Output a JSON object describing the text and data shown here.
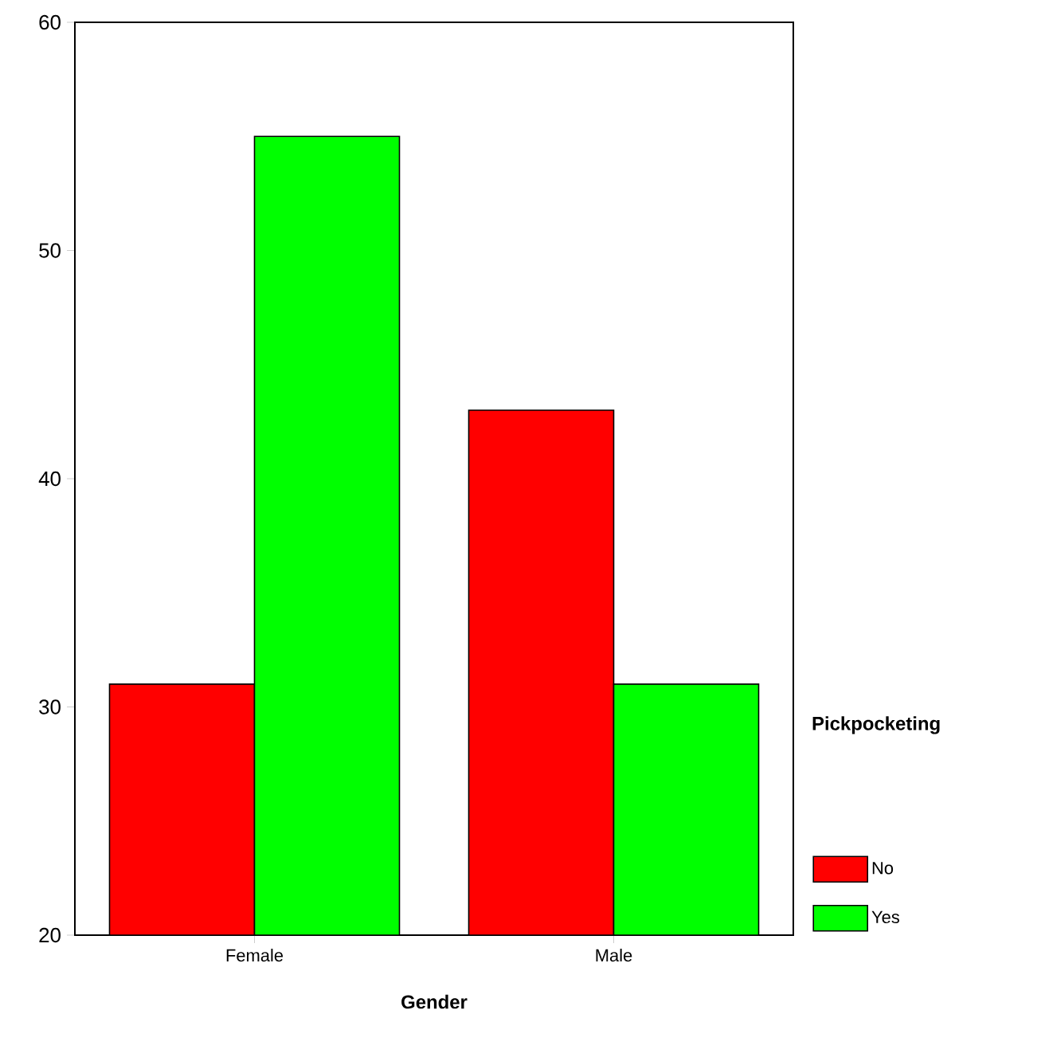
{
  "chart_data": {
    "type": "bar",
    "xlabel": "Gender",
    "legend_title": "Pickpocketing",
    "categories": [
      "Female",
      "Male"
    ],
    "series": [
      {
        "name": "No",
        "color": "#ff0000",
        "values": [
          31,
          43
        ]
      },
      {
        "name": "Yes",
        "color": "#00ff00",
        "values": [
          55,
          31
        ]
      }
    ],
    "ylim": [
      20,
      60
    ],
    "yticks": [
      20,
      30,
      40,
      50,
      60
    ],
    "grid": false,
    "legend": "right"
  }
}
